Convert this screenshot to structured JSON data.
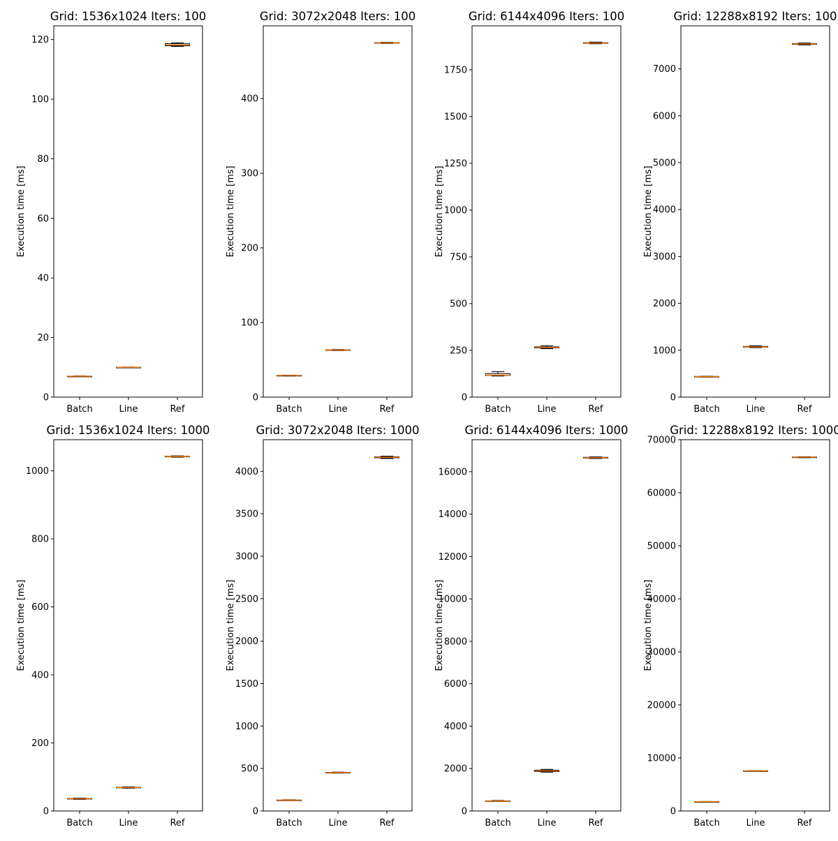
{
  "colors": {
    "median": "#ff7f0e",
    "box": "#000000",
    "axis": "#000000",
    "background": "#ffffff"
  },
  "chart_data": [
    {
      "type": "box",
      "title": "Grid: 1536x1024 Iters: 100",
      "xlabel": "",
      "ylabel": "Execution time [ms]",
      "categories": [
        "Batch",
        "Line",
        "Ref"
      ],
      "ylim": [
        0,
        124.6
      ],
      "yticks": [
        "0",
        "20",
        "40",
        "60",
        "80",
        "100",
        "120"
      ],
      "boxes": [
        {
          "label": "Batch",
          "whislo": 6.9,
          "q1": 6.95,
          "med": 7.0,
          "q3": 7.05,
          "whishi": 7.1
        },
        {
          "label": "Line",
          "whislo": 9.9,
          "q1": 9.95,
          "med": 10.0,
          "q3": 10.05,
          "whishi": 10.1
        },
        {
          "label": "Ref",
          "whislo": 117.7,
          "q1": 117.9,
          "med": 118.2,
          "q3": 118.6,
          "whishi": 118.9
        }
      ]
    },
    {
      "type": "box",
      "title": "Grid: 3072x2048 Iters: 100",
      "xlabel": "",
      "ylabel": "Execution time [ms]",
      "categories": [
        "Batch",
        "Line",
        "Ref"
      ],
      "ylim": [
        0,
        497.4
      ],
      "yticks": [
        "0",
        "100",
        "200",
        "300",
        "400"
      ],
      "boxes": [
        {
          "label": "Batch",
          "whislo": 28.3,
          "q1": 28.6,
          "med": 28.9,
          "q3": 29.2,
          "whishi": 29.5
        },
        {
          "label": "Line",
          "whislo": 62.3,
          "q1": 62.7,
          "med": 63.0,
          "q3": 63.4,
          "whishi": 63.8
        },
        {
          "label": "Ref",
          "whislo": 473.8,
          "q1": 474.2,
          "med": 474.6,
          "q3": 475.0,
          "whishi": 475.4
        }
      ]
    },
    {
      "type": "box",
      "title": "Grid: 6144x4096 Iters: 100",
      "xlabel": "",
      "ylabel": "Execution time [ms]",
      "categories": [
        "Batch",
        "Line",
        "Ref"
      ],
      "ylim": [
        0,
        1985.0
      ],
      "yticks": [
        "0",
        "250",
        "500",
        "750",
        "1000",
        "1250",
        "1500",
        "1750"
      ],
      "boxes": [
        {
          "label": "Batch",
          "whislo": 113,
          "q1": 116,
          "med": 118,
          "q3": 126,
          "whishi": 136
        },
        {
          "label": "Line",
          "whislo": 259,
          "q1": 263,
          "med": 266,
          "q3": 269,
          "whishi": 275
        },
        {
          "label": "Ref",
          "whislo": 1889,
          "q1": 1891,
          "med": 1893,
          "q3": 1895,
          "whishi": 1898
        }
      ]
    },
    {
      "type": "box",
      "title": "Grid: 12288x8192 Iters: 100",
      "xlabel": "",
      "ylabel": "Execution time [ms]",
      "categories": [
        "Batch",
        "Line",
        "Ref"
      ],
      "ylim": [
        0,
        7917
      ],
      "yticks": [
        "0",
        "1000",
        "2000",
        "3000",
        "4000",
        "5000",
        "6000",
        "7000"
      ],
      "boxes": [
        {
          "label": "Batch",
          "whislo": 427,
          "q1": 432,
          "med": 437,
          "q3": 442,
          "whishi": 447
        },
        {
          "label": "Line",
          "whislo": 1055,
          "q1": 1065,
          "med": 1072,
          "q3": 1082,
          "whishi": 1095
        },
        {
          "label": "Ref",
          "whislo": 7510,
          "q1": 7522,
          "med": 7531,
          "q3": 7540,
          "whishi": 7550
        }
      ]
    },
    {
      "type": "box",
      "title": "Grid: 1536x1024 Iters: 1000",
      "xlabel": "",
      "ylabel": "Execution time [ms]",
      "categories": [
        "Batch",
        "Line",
        "Ref"
      ],
      "ylim": [
        0,
        1091.5
      ],
      "yticks": [
        "0",
        "200",
        "400",
        "600",
        "800",
        "1000"
      ],
      "boxes": [
        {
          "label": "Batch",
          "whislo": 34,
          "q1": 35,
          "med": 36,
          "q3": 37,
          "whishi": 38
        },
        {
          "label": "Line",
          "whislo": 67,
          "q1": 68,
          "med": 69,
          "q3": 70,
          "whishi": 71
        },
        {
          "label": "Ref",
          "whislo": 1040,
          "q1": 1041,
          "med": 1042,
          "q3": 1043,
          "whishi": 1044
        }
      ]
    },
    {
      "type": "box",
      "title": "Grid: 3072x2048 Iters: 1000",
      "xlabel": "",
      "ylabel": "Execution time [ms]",
      "categories": [
        "Batch",
        "Line",
        "Ref"
      ],
      "ylim": [
        0,
        4372
      ],
      "yticks": [
        "0",
        "500",
        "1000",
        "1500",
        "2000",
        "2500",
        "3000",
        "3500",
        "4000"
      ],
      "boxes": [
        {
          "label": "Batch",
          "whislo": 124,
          "q1": 126,
          "med": 128,
          "q3": 130,
          "whishi": 133
        },
        {
          "label": "Line",
          "whislo": 446,
          "q1": 449,
          "med": 452,
          "q3": 455,
          "whishi": 458
        },
        {
          "label": "Ref",
          "whislo": 4150,
          "q1": 4158,
          "med": 4164,
          "q3": 4170,
          "whishi": 4178
        }
      ]
    },
    {
      "type": "box",
      "title": "Grid: 6144x4096 Iters: 1000",
      "xlabel": "",
      "ylabel": "Execution time [ms]",
      "categories": [
        "Batch",
        "Line",
        "Ref"
      ],
      "ylim": [
        0,
        17510
      ],
      "yticks": [
        "0",
        "2000",
        "4000",
        "6000",
        "8000",
        "10000",
        "12000",
        "14000",
        "16000"
      ],
      "boxes": [
        {
          "label": "Batch",
          "whislo": 445,
          "q1": 455,
          "med": 465,
          "q3": 480,
          "whishi": 492
        },
        {
          "label": "Line",
          "whislo": 1830,
          "q1": 1860,
          "med": 1890,
          "q3": 1925,
          "whishi": 1965
        },
        {
          "label": "Ref",
          "whislo": 16620,
          "q1": 16640,
          "med": 16660,
          "q3": 16680,
          "whishi": 16700
        }
      ]
    },
    {
      "type": "box",
      "title": "Grid: 12288x8192 Iters: 1000",
      "xlabel": "",
      "ylabel": "Execution time [ms]",
      "categories": [
        "Batch",
        "Line",
        "Ref"
      ],
      "ylim": [
        0,
        70000
      ],
      "yticks": [
        "0",
        "10000",
        "20000",
        "30000",
        "40000",
        "50000",
        "60000",
        "70000"
      ],
      "boxes": [
        {
          "label": "Batch",
          "whislo": 1720,
          "q1": 1740,
          "med": 1760,
          "q3": 1780,
          "whishi": 1800
        },
        {
          "label": "Line",
          "whislo": 7530,
          "q1": 7560,
          "med": 7580,
          "q3": 7600,
          "whishi": 7630
        },
        {
          "label": "Ref",
          "whislo": 66600,
          "q1": 66650,
          "med": 66700,
          "q3": 66750,
          "whishi": 66800
        }
      ]
    }
  ]
}
